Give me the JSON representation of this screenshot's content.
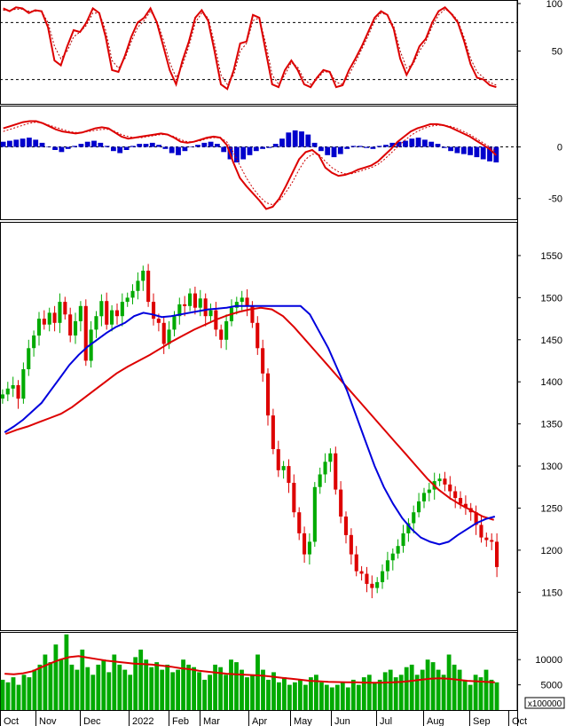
{
  "chart_data": [
    {
      "type": "line",
      "panel": "stochastic",
      "yticks": [
        "100",
        "50"
      ],
      "ylim": [
        0,
        100
      ],
      "reference_lines": [
        80,
        20
      ],
      "series": [
        {
          "color": "#dd0000",
          "style": "solid",
          "values": [
            95,
            92,
            96,
            95,
            90,
            93,
            92,
            75,
            40,
            35,
            55,
            72,
            70,
            80,
            95,
            90,
            65,
            30,
            28,
            45,
            65,
            80,
            85,
            95,
            80,
            55,
            30,
            15,
            40,
            60,
            85,
            93,
            82,
            50,
            15,
            10,
            30,
            58,
            60,
            88,
            85,
            50,
            15,
            12,
            30,
            40,
            30,
            15,
            12,
            22,
            30,
            28,
            12,
            14,
            30,
            42,
            55,
            70,
            85,
            92,
            88,
            73,
            42,
            25,
            38,
            55,
            63,
            80,
            92,
            96,
            89,
            80,
            60,
            36,
            22,
            20,
            14,
            12
          ]
        },
        {
          "color": "#aa0000",
          "style": "dashed",
          "values": [
            93,
            93,
            94,
            94,
            92,
            92,
            92,
            80,
            55,
            42,
            50,
            65,
            70,
            77,
            90,
            90,
            72,
            40,
            32,
            42,
            60,
            75,
            82,
            92,
            82,
            62,
            38,
            22,
            35,
            55,
            80,
            90,
            85,
            58,
            25,
            15,
            25,
            50,
            58,
            82,
            85,
            58,
            25,
            15,
            25,
            38,
            33,
            20,
            15,
            20,
            28,
            28,
            17,
            15,
            25,
            38,
            52,
            66,
            82,
            90,
            88,
            76,
            50,
            32,
            36,
            50,
            60,
            76,
            88,
            94,
            90,
            82,
            64,
            42,
            28,
            22,
            17,
            14
          ]
        }
      ]
    },
    {
      "type": "bar",
      "panel": "macd",
      "yticks": [
        "0",
        "-50"
      ],
      "ylim": [
        -70,
        40
      ],
      "bar_color": "#0000cc",
      "histogram": [
        5,
        6,
        7,
        8,
        9,
        7,
        4,
        0,
        -3,
        -5,
        -2,
        1,
        3,
        5,
        6,
        4,
        1,
        -4,
        -6,
        -3,
        1,
        3,
        3,
        4,
        2,
        -2,
        -6,
        -8,
        -4,
        0,
        2,
        4,
        5,
        3,
        -5,
        -12,
        -15,
        -12,
        -8,
        -4,
        -2,
        -1,
        3,
        8,
        14,
        16,
        15,
        12,
        4,
        -4,
        -8,
        -10,
        -7,
        -2,
        1,
        1,
        -1,
        -2,
        1,
        2,
        4,
        5,
        6,
        8,
        9,
        7,
        5,
        3,
        -1,
        -4,
        -6,
        -7,
        -8,
        -10,
        -12,
        -14,
        -15
      ]
    },
    {
      "type": "line",
      "panel": "price",
      "x_labels": [
        "Oct",
        "Nov",
        "Dec",
        "2022",
        "Feb",
        "Mar",
        "Apr",
        "May",
        "Jun",
        "Jul",
        "Aug",
        "Sep",
        "Oct"
      ],
      "yticks": [
        "1550",
        "1500",
        "1450",
        "1400",
        "1350",
        "1300",
        "1250",
        "1200",
        "1150"
      ],
      "ylim": [
        1105,
        1590
      ],
      "candle_up_color": "#00aa00",
      "candle_down_color": "#dd0000",
      "close": [
        1385,
        1392,
        1396,
        1380,
        1415,
        1440,
        1455,
        1475,
        1468,
        1482,
        1470,
        1495,
        1480,
        1455,
        1472,
        1490,
        1425,
        1462,
        1478,
        1496,
        1468,
        1485,
        1478,
        1495,
        1500,
        1508,
        1520,
        1532,
        1495,
        1475,
        1470,
        1445,
        1462,
        1478,
        1492,
        1490,
        1505,
        1488,
        1499,
        1478,
        1485,
        1462,
        1450,
        1472,
        1488,
        1495,
        1500,
        1490,
        1470,
        1440,
        1410,
        1360,
        1320,
        1295,
        1300,
        1280,
        1245,
        1220,
        1195,
        1210,
        1275,
        1290,
        1305,
        1315,
        1272,
        1240,
        1218,
        1195,
        1175,
        1172,
        1160,
        1155,
        1162,
        1175,
        1188,
        1196,
        1205,
        1220,
        1232,
        1245,
        1258,
        1268,
        1272,
        1282,
        1285,
        1278,
        1270,
        1262,
        1255,
        1250,
        1245,
        1230,
        1215,
        1212,
        1210,
        1180
      ],
      "ma_short": [
        1340,
        1347,
        1355,
        1365,
        1375,
        1390,
        1405,
        1420,
        1432,
        1442,
        1450,
        1458,
        1465,
        1470,
        1478,
        1482,
        1480,
        1477,
        1478,
        1480,
        1482,
        1484,
        1486,
        1487,
        1488,
        1490,
        1490,
        1490,
        1490,
        1490,
        1490,
        1490,
        1490,
        1480,
        1460,
        1440,
        1415,
        1390,
        1360,
        1330,
        1300,
        1275,
        1255,
        1238,
        1225,
        1215,
        1210,
        1207,
        1210,
        1218,
        1225,
        1232,
        1237,
        1240
      ],
      "ma_long": [
        1338,
        1343,
        1347,
        1352,
        1357,
        1362,
        1370,
        1380,
        1390,
        1400,
        1410,
        1418,
        1425,
        1432,
        1440,
        1448,
        1455,
        1462,
        1468,
        1474,
        1479,
        1483,
        1486,
        1488,
        1486,
        1478,
        1465,
        1450,
        1435,
        1420,
        1405,
        1390,
        1375,
        1360,
        1345,
        1330,
        1315,
        1300,
        1285,
        1272,
        1262,
        1254,
        1247,
        1240,
        1236
      ]
    },
    {
      "type": "bar",
      "panel": "volume",
      "ytick_values": [
        10000,
        5000
      ],
      "yticks": [
        "10000",
        "5000"
      ],
      "unit_label": "x100000",
      "ylim": [
        0,
        15500
      ],
      "volume": [
        6000,
        5500,
        6500,
        5000,
        7000,
        6500,
        8000,
        9000,
        11000,
        9500,
        13000,
        10000,
        15000,
        9000,
        8000,
        12000,
        8500,
        7000,
        9000,
        10000,
        7500,
        11000,
        9000,
        8000,
        7000,
        10500,
        12000,
        10000,
        8500,
        9500,
        8000,
        9000,
        7500,
        8000,
        10000,
        9000,
        8500,
        7500,
        6000,
        7000,
        9000,
        8500,
        7000,
        10000,
        9500,
        8000,
        6500,
        7000,
        11000,
        8000,
        6000,
        7500,
        5500,
        6500,
        5000,
        5500,
        6000,
        5000,
        6500,
        7000,
        5500,
        5000,
        4500,
        5000,
        5500,
        4500,
        6000,
        5000,
        6500,
        7000,
        5500,
        6000,
        7500,
        8000,
        6500,
        7000,
        8500,
        9000,
        7000,
        8000,
        10000,
        9500,
        8000,
        7000,
        11000,
        9000,
        8000,
        6000,
        5000,
        7000,
        6500,
        8000,
        6000,
        5500
      ],
      "ma_volume": [
        7200,
        7100,
        7300,
        7700,
        8500,
        9300,
        10000,
        10500,
        10700,
        10400,
        10100,
        9800,
        9600,
        9400,
        9200,
        9100,
        9000,
        8800,
        8600,
        8300,
        8100,
        7800,
        7600,
        7400,
        7200,
        7100,
        7000,
        6900,
        6800,
        6600,
        6400,
        6200,
        6000,
        5800,
        5700,
        5600,
        5550,
        5500,
        5500,
        5450,
        5400,
        5450,
        5500,
        5600,
        5800,
        6000,
        6200,
        6300,
        6200,
        6000,
        5800,
        5700,
        5600,
        5500
      ]
    }
  ]
}
